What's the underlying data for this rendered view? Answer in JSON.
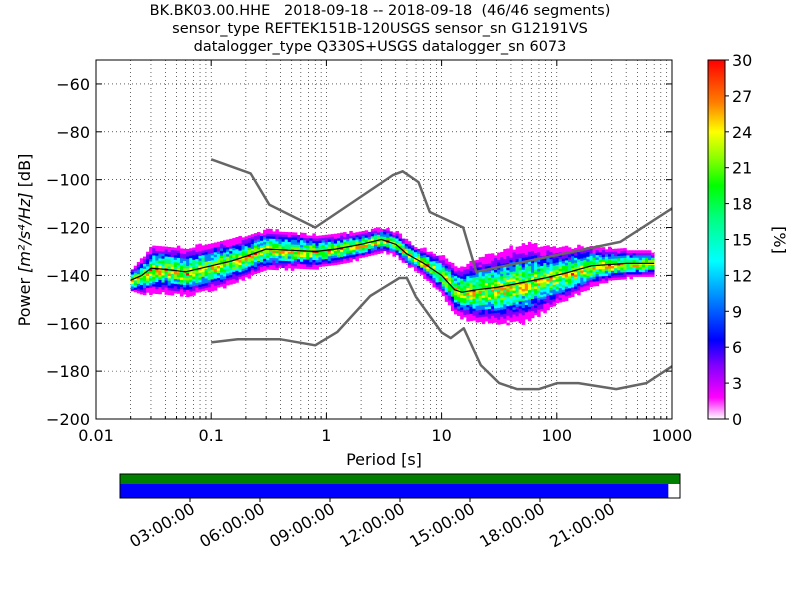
{
  "header": {
    "line1": "BK.BK03.00.HHE   2018-09-18 -- 2018-09-18  (46/46 segments)",
    "line2": "sensor_type REFTEK151B-120USGS sensor_sn G12191VS",
    "line3": "datalogger_type Q330S+USGS datalogger_sn 6073"
  },
  "chart_data": {
    "type": "heatmap",
    "title": "BK.BK03.00.HHE   2018-09-18 -- 2018-09-18  (46/46 segments)",
    "xlabel": "Period [s]",
    "ylabel_prefix": "Power ",
    "ylabel_units": "[m²/s⁴/Hz]",
    "ylabel_suffix": " [dB]",
    "xscale": "log",
    "xlim": [
      0.01,
      1000
    ],
    "ylim": [
      -200,
      -50
    ],
    "x_ticks": [
      0.01,
      0.1,
      1,
      10,
      100,
      1000
    ],
    "x_tick_labels": [
      "0.01",
      "0.1",
      "1",
      "10",
      "100",
      "1000"
    ],
    "y_ticks": [
      -200,
      -180,
      -160,
      -140,
      -120,
      -100,
      -80,
      -60
    ],
    "y_tick_labels": [
      "−200",
      "−180",
      "−160",
      "−140",
      "−120",
      "−100",
      "−80",
      "−60"
    ],
    "colorbar": {
      "label": "[%]",
      "range": [
        0,
        30
      ],
      "ticks": [
        0,
        3,
        6,
        9,
        12,
        15,
        18,
        21,
        24,
        27,
        30
      ],
      "tick_labels": [
        "0",
        "3",
        "6",
        "9",
        "12",
        "15",
        "18",
        "21",
        "24",
        "27",
        "30"
      ],
      "colors": [
        "#ffffff",
        "#ff00ff",
        "#8000ff",
        "#0000ff",
        "#0080ff",
        "#00ffff",
        "#00ff80",
        "#00ff00",
        "#80ff00",
        "#ffff00",
        "#ff8000",
        "#ff0000"
      ]
    },
    "nhnm": {
      "name": "New High Noise Model",
      "color": "#666666",
      "periods": [
        0.1,
        0.22,
        0.32,
        0.8,
        3.8,
        4.6,
        6.3,
        7.9,
        15.4,
        20,
        354.8,
        1000
      ],
      "db": [
        -91.5,
        -97.4,
        -110.5,
        -120,
        -98,
        -96.5,
        -101,
        -113.5,
        -120,
        -138.5,
        -126,
        -112
      ]
    },
    "nlnm": {
      "name": "New Low Noise Model",
      "color": "#666666",
      "periods": [
        0.1,
        0.17,
        0.4,
        0.8,
        1.24,
        2.4,
        4.3,
        5,
        6,
        10,
        12,
        15.6,
        21.9,
        31.6,
        45,
        70,
        101,
        154,
        328,
        600,
        1000
      ],
      "db": [
        -168,
        -166.7,
        -166.7,
        -169.2,
        -163.7,
        -148.6,
        -141.1,
        -141.1,
        -149,
        -163.8,
        -166.2,
        -162.1,
        -177.5,
        -185,
        -187.5,
        -187.5,
        -185,
        -185,
        -187.5,
        -185,
        -178
      ]
    },
    "mode": {
      "name": "mode",
      "color": "#000000",
      "periods": [
        0.02,
        0.025,
        0.03,
        0.04,
        0.06,
        0.1,
        0.15,
        0.2,
        0.3,
        0.5,
        0.8,
        1.2,
        2,
        3,
        4,
        5,
        7,
        10,
        13,
        15,
        20,
        30,
        50,
        80,
        120,
        200,
        400,
        700
      ],
      "db": [
        -142,
        -140,
        -137,
        -137.5,
        -138.5,
        -136,
        -134,
        -132,
        -129,
        -129.5,
        -130,
        -129,
        -127,
        -125,
        -127,
        -131,
        -135,
        -140,
        -146,
        -147,
        -146,
        -145,
        -143,
        -141,
        -139,
        -136,
        -135,
        -135
      ]
    },
    "density_spread_db": [
      [
        0.02,
        3
      ],
      [
        0.03,
        6
      ],
      [
        0.1,
        6
      ],
      [
        0.3,
        5
      ],
      [
        1,
        4
      ],
      [
        3,
        3
      ],
      [
        6,
        3
      ],
      [
        10,
        5
      ],
      [
        20,
        8
      ],
      [
        50,
        10
      ],
      [
        100,
        7
      ],
      [
        300,
        4
      ],
      [
        700,
        3
      ]
    ]
  },
  "availability": {
    "time_ticks": [
      "03:00:00",
      "06:00:00",
      "09:00:00",
      "12:00:00",
      "15:00:00",
      "18:00:00",
      "21:00:00"
    ],
    "bar_colors": {
      "top": "#008000",
      "bottom": "#0000ff"
    },
    "coverage_hours": [
      0,
      23.5
    ]
  }
}
